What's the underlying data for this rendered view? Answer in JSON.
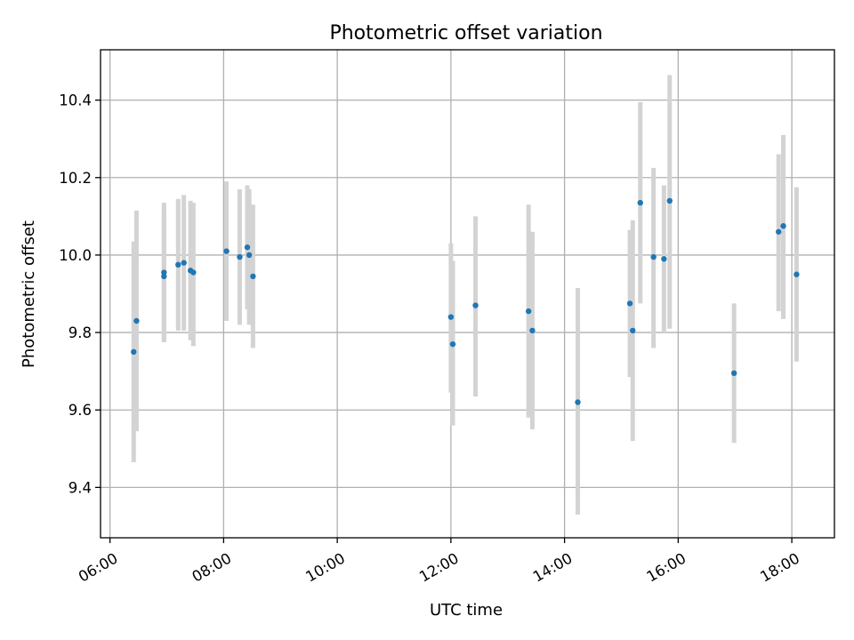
{
  "chart_data": {
    "type": "scatter",
    "title": "Photometric offset variation",
    "xlabel": "UTC time",
    "ylabel": "Photometric offset",
    "x_scale": "time",
    "xlim": [
      "05:50",
      "18:45"
    ],
    "ylim": [
      9.27,
      10.53
    ],
    "x_ticks": [
      "06:00",
      "08:00",
      "10:00",
      "12:00",
      "14:00",
      "16:00",
      "18:00"
    ],
    "y_ticks": [
      "9.4",
      "9.6",
      "9.8",
      "10.0",
      "10.2",
      "10.4"
    ],
    "grid": true,
    "colors": {
      "point": "#1f77b4",
      "errorbar": "#d3d3d3"
    },
    "points": [
      {
        "time": "06:25",
        "y": 9.75,
        "low": 9.465,
        "high": 10.035
      },
      {
        "time": "06:28",
        "y": 9.83,
        "low": 9.545,
        "high": 10.115
      },
      {
        "time": "06:57",
        "y": 9.945,
        "low": 9.775,
        "high": 10.115
      },
      {
        "time": "06:57",
        "y": 9.955,
        "low": 9.775,
        "high": 10.135
      },
      {
        "time": "07:12",
        "y": 9.975,
        "low": 9.805,
        "high": 10.145
      },
      {
        "time": "07:18",
        "y": 9.98,
        "low": 9.805,
        "high": 10.155
      },
      {
        "time": "07:25",
        "y": 9.96,
        "low": 9.78,
        "high": 10.14
      },
      {
        "time": "07:28",
        "y": 9.955,
        "low": 9.765,
        "high": 10.135
      },
      {
        "time": "08:03",
        "y": 10.01,
        "low": 9.83,
        "high": 10.19
      },
      {
        "time": "08:17",
        "y": 9.995,
        "low": 9.82,
        "high": 10.17
      },
      {
        "time": "08:25",
        "y": 10.02,
        "low": 9.86,
        "high": 10.18
      },
      {
        "time": "08:27",
        "y": 10.0,
        "low": 9.82,
        "high": 10.17
      },
      {
        "time": "08:31",
        "y": 9.945,
        "low": 9.76,
        "high": 10.13
      },
      {
        "time": "12:00",
        "y": 9.84,
        "low": 9.645,
        "high": 10.03
      },
      {
        "time": "12:02",
        "y": 9.77,
        "low": 9.56,
        "high": 9.985
      },
      {
        "time": "12:26",
        "y": 9.87,
        "low": 9.635,
        "high": 10.1
      },
      {
        "time": "13:22",
        "y": 9.855,
        "low": 9.58,
        "high": 10.13
      },
      {
        "time": "13:26",
        "y": 9.805,
        "low": 9.55,
        "high": 10.06
      },
      {
        "time": "14:14",
        "y": 9.62,
        "low": 9.33,
        "high": 9.915
      },
      {
        "time": "15:09",
        "y": 9.875,
        "low": 9.685,
        "high": 10.065
      },
      {
        "time": "15:12",
        "y": 9.805,
        "low": 9.52,
        "high": 10.09
      },
      {
        "time": "15:20",
        "y": 10.135,
        "low": 9.875,
        "high": 10.395
      },
      {
        "time": "15:34",
        "y": 9.995,
        "low": 9.76,
        "high": 10.225
      },
      {
        "time": "15:45",
        "y": 9.99,
        "low": 9.8,
        "high": 10.18
      },
      {
        "time": "15:51",
        "y": 10.14,
        "low": 9.81,
        "high": 10.465
      },
      {
        "time": "16:59",
        "y": 9.695,
        "low": 9.515,
        "high": 9.875
      },
      {
        "time": "17:46",
        "y": 10.06,
        "low": 9.855,
        "high": 10.26
      },
      {
        "time": "17:51",
        "y": 10.075,
        "low": 9.835,
        "high": 10.31
      },
      {
        "time": "18:05",
        "y": 9.95,
        "low": 9.725,
        "high": 10.175
      }
    ]
  }
}
